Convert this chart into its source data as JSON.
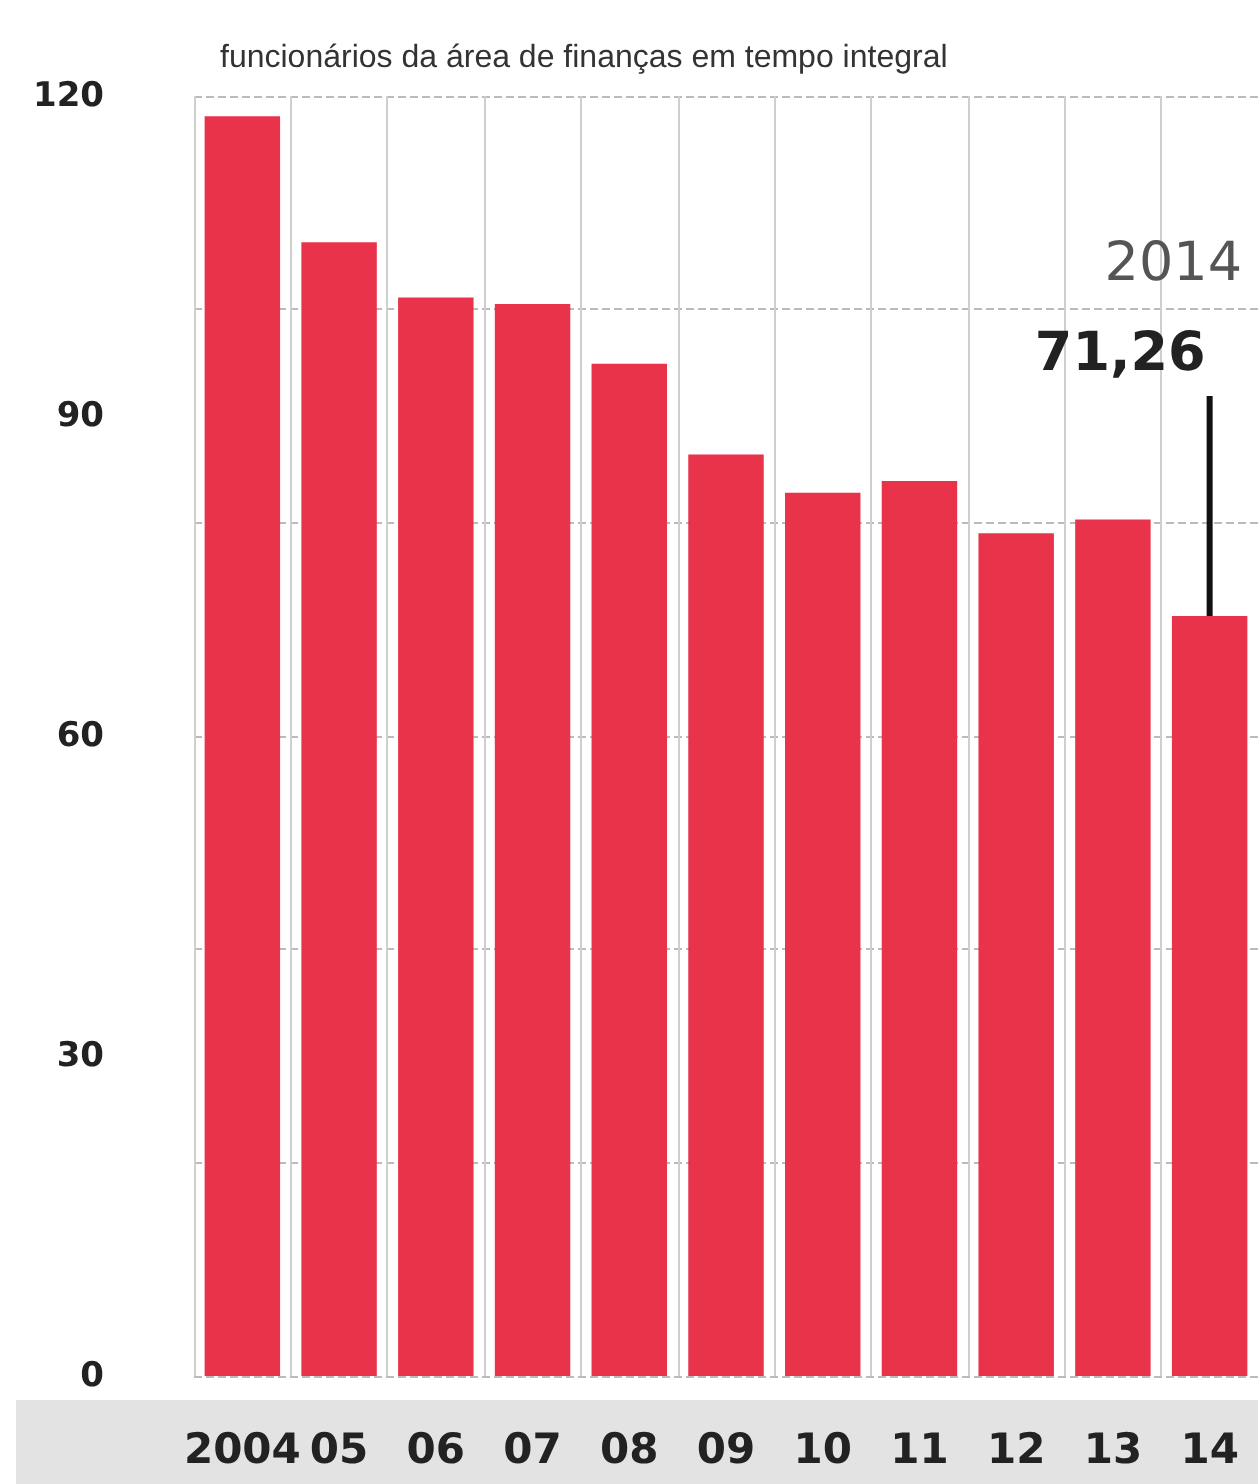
{
  "chart_data": {
    "type": "bar",
    "subtitle": "funcionários da área de finanças em tempo integral",
    "categories": [
      "2004",
      "05",
      "06",
      "07",
      "08",
      "09",
      "10",
      "11",
      "12",
      "13",
      "14"
    ],
    "values": [
      118.1,
      106.3,
      101.1,
      100.5,
      94.9,
      86.4,
      82.8,
      83.9,
      79.0,
      80.3,
      71.26
    ],
    "value_labels": [
      null,
      null,
      null,
      null,
      null,
      null,
      null,
      null,
      null,
      null,
      "71,26"
    ],
    "annotations": [
      "2014"
    ],
    "color": "#e8334a",
    "ylim": [
      0,
      120
    ],
    "yticks": [
      0,
      30,
      60,
      90,
      120
    ],
    "grid": true
  }
}
